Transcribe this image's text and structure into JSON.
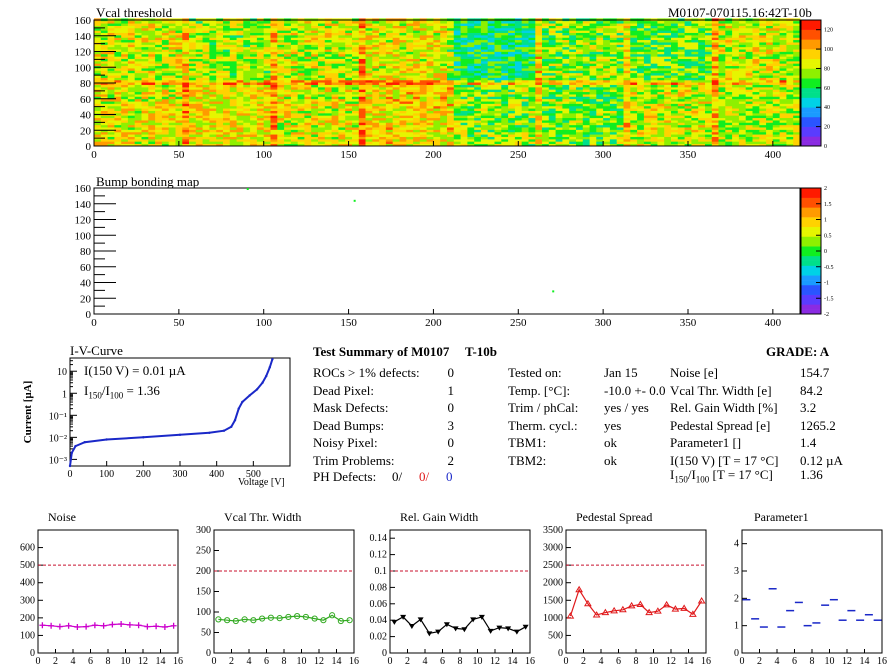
{
  "header": {
    "map1_title": "Vcal threshold",
    "module_id": "M0107-070115.16:42T-10b",
    "map2_title": "Bump bonding map"
  },
  "maps": {
    "vcal": {
      "x_ticks": [
        0,
        50,
        100,
        150,
        200,
        250,
        300,
        350,
        400
      ],
      "y_ticks": [
        0,
        10,
        20,
        30,
        40,
        50,
        60,
        70,
        80,
        90,
        100,
        110,
        120,
        130,
        140,
        150,
        160
      ],
      "y_labels": [
        "0",
        "20",
        "40",
        "60",
        "80",
        "100",
        "120",
        "140",
        "160"
      ],
      "xlim": [
        0,
        416
      ],
      "ylim": [
        0,
        160
      ],
      "zlim": [
        0,
        130
      ],
      "color_ticks": [
        "0",
        "20",
        "40",
        "60",
        "80",
        "100",
        "120"
      ],
      "roc_boundaries": [
        52,
        104,
        156,
        208,
        260,
        312,
        364
      ],
      "roc_means_top": [
        85,
        78,
        82,
        88,
        60,
        75,
        70,
        84
      ],
      "roc_means_bottom": [
        88,
        90,
        86,
        92,
        75,
        72,
        84,
        80
      ]
    },
    "bump": {
      "x_ticks": [
        0,
        50,
        100,
        150,
        200,
        250,
        300,
        350,
        400
      ],
      "y_labels": [
        "0",
        "20",
        "40",
        "60",
        "80",
        "100",
        "120",
        "140",
        "160"
      ],
      "xlim": [
        0,
        416
      ],
      "ylim": [
        0,
        160
      ],
      "color_ticks": [
        "2",
        "1.5",
        "1",
        "0.5",
        "0",
        "-0.5",
        "-1",
        "-1.5",
        "-2"
      ],
      "dead_bumps": [
        [
          153,
          145
        ],
        [
          270,
          30
        ],
        [
          90,
          160
        ]
      ]
    }
  },
  "iv": {
    "title": "I-V-Curve",
    "ylabel": "Current [µA]",
    "xlabel": "Voltage [V]",
    "x_ticks": [
      "0",
      "100",
      "200",
      "300",
      "400",
      "500"
    ],
    "y_ticks": [
      "10⁻³",
      "10⁻²",
      "10⁻¹",
      "1",
      "10"
    ],
    "annot1": "I(150 V) = 0.01 µA",
    "annot2_pre": "I",
    "annot2_sub1": "150",
    "annot2_mid": "/I",
    "annot2_sub2": "100",
    "annot2_post": "=  1.36",
    "points": [
      [
        0,
        0.0005
      ],
      [
        5,
        0.002
      ],
      [
        15,
        0.004
      ],
      [
        40,
        0.006
      ],
      [
        100,
        0.008
      ],
      [
        200,
        0.01
      ],
      [
        300,
        0.013
      ],
      [
        380,
        0.016
      ],
      [
        420,
        0.02
      ],
      [
        440,
        0.03
      ],
      [
        450,
        0.06
      ],
      [
        460,
        0.2
      ],
      [
        470,
        0.4
      ],
      [
        490,
        0.8
      ],
      [
        510,
        1.5
      ],
      [
        525,
        3
      ],
      [
        535,
        6
      ],
      [
        545,
        15
      ],
      [
        552,
        35
      ]
    ]
  },
  "summary": {
    "title": "Test Summary of M0107",
    "tag": "T-10b",
    "grade_label": "GRADE:  A",
    "left_rows": [
      {
        "label": "ROCs > 1% defects:",
        "value": "0"
      },
      {
        "label": "Dead Pixel:",
        "value": "1"
      },
      {
        "label": "Mask Defects:",
        "value": "0"
      },
      {
        "label": "Dead Bumps:",
        "value": "3"
      },
      {
        "label": "Noisy Pixel:",
        "value": "0"
      },
      {
        "label": "Trim Problems:",
        "value": "2"
      }
    ],
    "ph_label": "PH Defects:",
    "ph_values": [
      "0/",
      "0/",
      "0"
    ],
    "ph_colors": [
      "#000000",
      "#e0191b",
      "#1a28c8"
    ],
    "mid_rows": [
      {
        "label": "Tested on:",
        "value": "Jan 15"
      },
      {
        "label": "Temp. [°C]:",
        "value": "-10.0 +- 0.0"
      },
      {
        "label": "Trim / phCal:",
        "value": "yes / yes"
      },
      {
        "label": "Therm. cycl.:",
        "value": "yes"
      },
      {
        "label": "TBM1:",
        "value": "ok"
      },
      {
        "label": "TBM2:",
        "value": "ok"
      }
    ],
    "right_rows": [
      {
        "label": "Noise [e]",
        "value": "154.7"
      },
      {
        "label": "Vcal Thr. Width [e]",
        "value": "84.2"
      },
      {
        "label": "Rel. Gain Width [%]",
        "value": "3.2"
      },
      {
        "label": "Pedestal Spread [e]",
        "value": "1265.2"
      },
      {
        "label": "Parameter1 []",
        "value": "1.4"
      },
      {
        "label": "I(150 V) [T = 17 °C]",
        "value": "0.12 µA"
      }
    ],
    "ratio_label_pre": "I",
    "ratio_sub1": "150",
    "ratio_mid": "/I",
    "ratio_sub2": "100",
    "ratio_post": "  [T = 17 °C]",
    "ratio_value": "1.36"
  },
  "chart_data": [
    {
      "type": "line",
      "title": "Noise",
      "x": [
        0,
        1,
        2,
        3,
        4,
        5,
        6,
        7,
        8,
        9,
        10,
        11,
        12,
        13,
        14,
        15
      ],
      "values": [
        158,
        155,
        150,
        155,
        148,
        150,
        158,
        155,
        162,
        165,
        160,
        158,
        150,
        152,
        148,
        155
      ],
      "xlim": [
        0,
        16
      ],
      "ylim": [
        0,
        700
      ],
      "y_ticks": [
        0,
        100,
        200,
        300,
        400,
        500,
        600
      ],
      "x_ticks": [
        0,
        2,
        4,
        6,
        8,
        10,
        12,
        14,
        16
      ],
      "threshold": 500,
      "color": "#cc00cc",
      "marker": "plus"
    },
    {
      "type": "line",
      "title": "Vcal Thr. Width",
      "x": [
        0,
        1,
        2,
        3,
        4,
        5,
        6,
        7,
        8,
        9,
        10,
        11,
        12,
        13,
        14,
        15
      ],
      "values": [
        82,
        80,
        78,
        82,
        80,
        84,
        86,
        85,
        88,
        90,
        88,
        84,
        80,
        92,
        78,
        80
      ],
      "xlim": [
        0,
        16
      ],
      "ylim": [
        0,
        300
      ],
      "y_ticks": [
        0,
        50,
        100,
        150,
        200,
        250,
        300
      ],
      "x_ticks": [
        0,
        2,
        4,
        6,
        8,
        10,
        12,
        14,
        16
      ],
      "threshold": 200,
      "color": "#33aa22",
      "marker": "circle"
    },
    {
      "type": "line",
      "title": "Rel. Gain Width",
      "x": [
        0,
        1,
        2,
        3,
        4,
        5,
        6,
        7,
        8,
        9,
        10,
        11,
        12,
        13,
        14,
        15
      ],
      "values": [
        0.038,
        0.044,
        0.033,
        0.041,
        0.024,
        0.026,
        0.035,
        0.03,
        0.029,
        0.041,
        0.044,
        0.027,
        0.031,
        0.03,
        0.026,
        0.032
      ],
      "xlim": [
        0,
        16
      ],
      "ylim": [
        0,
        0.15
      ],
      "y_ticks": [
        0,
        0.02,
        0.04,
        0.06,
        0.08,
        0.1,
        0.12,
        0.14
      ],
      "x_ticks": [
        0,
        2,
        4,
        6,
        8,
        10,
        12,
        14,
        16
      ],
      "threshold": 0.1,
      "color": "#000000",
      "marker": "triangle-down"
    },
    {
      "type": "line",
      "title": "Pedestal Spread",
      "x": [
        0,
        1,
        2,
        3,
        4,
        5,
        6,
        7,
        8,
        9,
        10,
        11,
        12,
        13,
        14,
        15
      ],
      "values": [
        1050,
        1800,
        1400,
        1080,
        1150,
        1200,
        1230,
        1340,
        1380,
        1150,
        1190,
        1370,
        1250,
        1270,
        1100,
        1480
      ],
      "xlim": [
        0,
        16
      ],
      "ylim": [
        0,
        3500
      ],
      "y_ticks": [
        0,
        500,
        1000,
        1500,
        2000,
        2500,
        3000,
        3500
      ],
      "x_ticks": [
        0,
        2,
        4,
        6,
        8,
        10,
        12,
        14,
        16
      ],
      "threshold": 2500,
      "color": "#e0191b",
      "marker": "triangle-up"
    },
    {
      "type": "scatter",
      "title": "Parameter1",
      "x": [
        0,
        1,
        2,
        3,
        4,
        5,
        6,
        7,
        8,
        9,
        10,
        11,
        12,
        13,
        14,
        15
      ],
      "values": [
        1.95,
        1.25,
        0.95,
        2.35,
        0.95,
        1.55,
        1.85,
        1.0,
        1.1,
        1.75,
        1.95,
        1.2,
        1.55,
        1.2,
        1.4,
        1.2
      ],
      "xlim": [
        0,
        16
      ],
      "ylim": [
        0,
        4.5
      ],
      "y_ticks": [
        0,
        1,
        2,
        3,
        4
      ],
      "x_ticks": [
        0,
        2,
        4,
        6,
        8,
        10,
        12,
        14,
        16
      ],
      "color": "#1a28c8",
      "marker": "hbar"
    }
  ]
}
